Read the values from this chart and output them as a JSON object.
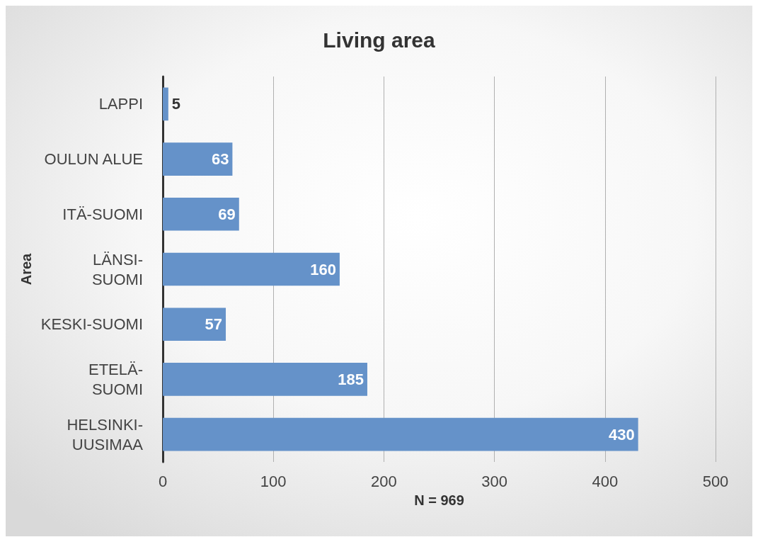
{
  "chart_data": {
    "type": "bar",
    "orientation": "horizontal",
    "title": "Living area",
    "xlabel": "N = 969",
    "ylabel": "Area",
    "categories": [
      "LAPPI",
      "OULUN ALUE",
      "ITÄ-SUOMI",
      "LÄNSI-\nSUOMI",
      "KESKI-SUOMI",
      "ETELÄ-\nSUOMI",
      "HELSINKI-\nUUSIMAA"
    ],
    "values": [
      5,
      63,
      69,
      160,
      57,
      185,
      430
    ],
    "color": "#6592c9",
    "xlim": [
      0,
      500
    ],
    "xticks": [
      0,
      100,
      200,
      300,
      400,
      500
    ],
    "grid": "x",
    "data_labels": true
  }
}
